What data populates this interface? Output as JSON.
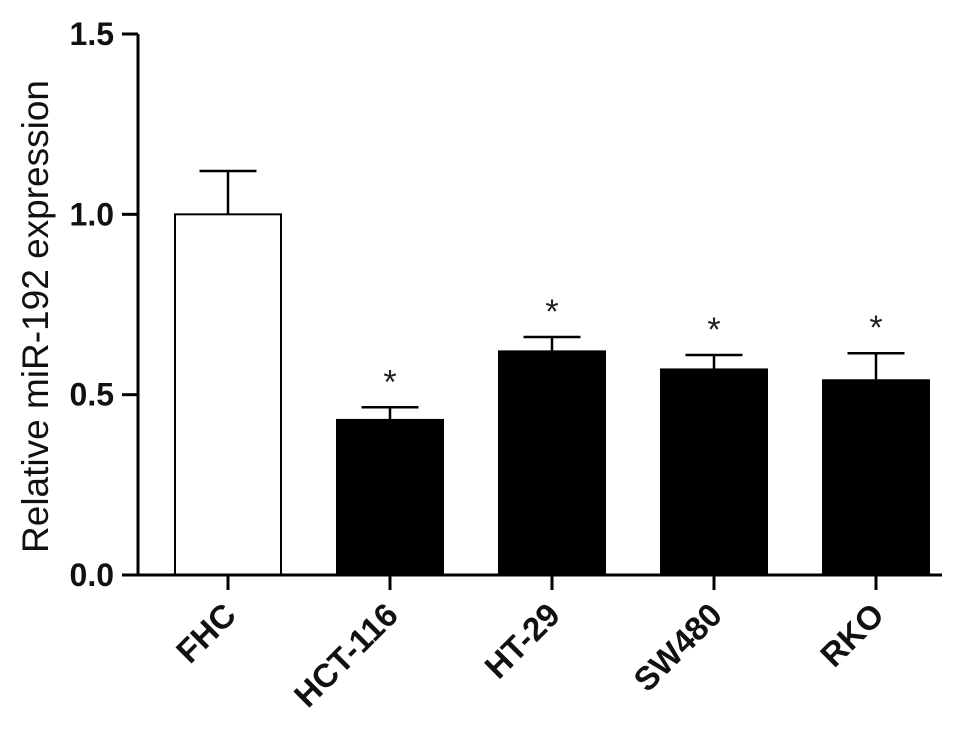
{
  "chart_data": {
    "type": "bar",
    "title": "",
    "xlabel": "",
    "ylabel": "Relative miR-192 expression",
    "ylim": [
      0,
      1.5
    ],
    "yticks": [
      "0.0",
      "0.5",
      "1.0",
      "1.5"
    ],
    "categories": [
      "FHC",
      "HCT-116",
      "HT-29",
      "SW480",
      "RKO"
    ],
    "values": [
      1.0,
      0.43,
      0.62,
      0.57,
      0.54
    ],
    "errors": [
      0.12,
      0.035,
      0.04,
      0.04,
      0.075
    ],
    "fills": [
      "#ffffff",
      "#000000",
      "#000000",
      "#000000",
      "#000000"
    ],
    "significance": [
      "",
      "*",
      "*",
      "*",
      "*"
    ],
    "grid": false,
    "legend": "none"
  }
}
